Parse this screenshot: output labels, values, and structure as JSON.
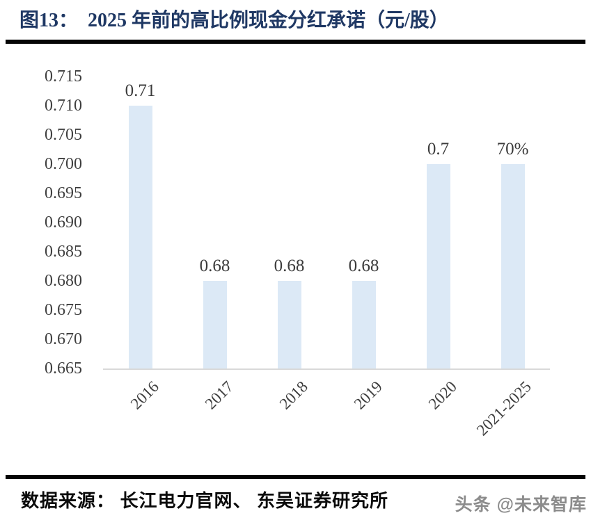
{
  "figure": {
    "label": "图13：",
    "title": "2025 年前的高比例现金分红承诺（元/股）"
  },
  "chart_data": {
    "type": "bar",
    "title": "2025 年前的高比例现金分红承诺（元/股）",
    "categories": [
      "2016",
      "2017",
      "2018",
      "2019",
      "2020",
      "2021-2025"
    ],
    "values": [
      0.71,
      0.68,
      0.68,
      0.68,
      0.7,
      0.7
    ],
    "data_labels": [
      "0.71",
      "0.68",
      "0.68",
      "0.68",
      "0.7",
      "70%"
    ],
    "xlabel": "",
    "ylabel": "",
    "ylim": [
      0.665,
      0.715
    ],
    "ytick_step": 0.005,
    "ytick_labels": [
      "0.715",
      "0.710",
      "0.705",
      "0.700",
      "0.695",
      "0.690",
      "0.685",
      "0.680",
      "0.675",
      "0.670",
      "0.665"
    ],
    "grid": false,
    "legend_position": "none",
    "bar_color": "#dce9f6",
    "axis_line_color": "#d9d9d9",
    "tick_label_color": "#3f3f3f",
    "title_color": "#1f3864"
  },
  "footer": {
    "source_text": "数据来源： 长江电力官网、 东吴证券研究所",
    "watermark": "头条 @未来智库"
  }
}
